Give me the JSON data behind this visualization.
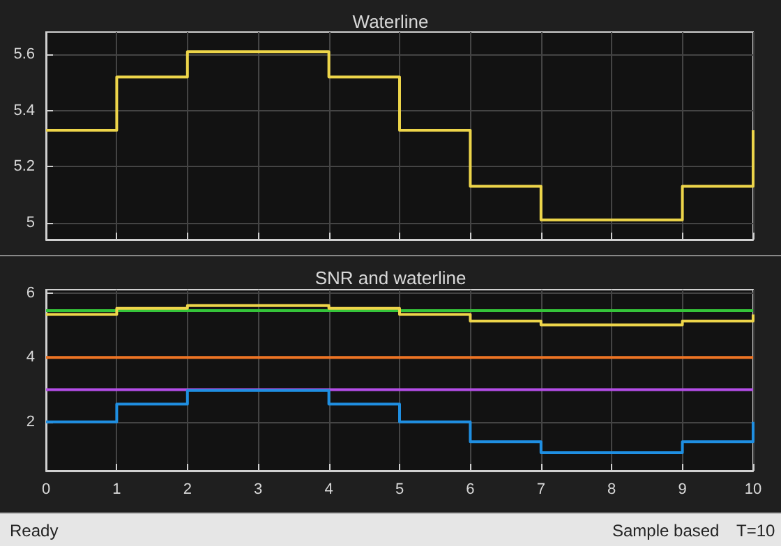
{
  "chart_data": [
    {
      "type": "step",
      "title": "Waterline",
      "x": [
        0,
        1,
        2,
        3,
        4,
        5,
        6,
        7,
        8,
        9,
        10
      ],
      "xlim": [
        0,
        10
      ],
      "xticks": [
        0,
        1,
        2,
        3,
        4,
        5,
        6,
        7,
        8,
        9,
        10
      ],
      "ylim": [
        4.94,
        5.68
      ],
      "yticks": [
        5,
        5.2,
        5.4,
        5.6
      ],
      "grid": true,
      "tick_labels": "y",
      "series": [
        {
          "color": "#edd54a",
          "values": [
            5.33,
            5.52,
            5.61,
            5.61,
            5.52,
            5.33,
            5.13,
            5.01,
            5.01,
            5.13,
            5.33
          ]
        }
      ]
    },
    {
      "type": "step",
      "title": "SNR and waterline",
      "x": [
        0,
        1,
        2,
        3,
        4,
        5,
        6,
        7,
        8,
        9,
        10
      ],
      "xlim": [
        0,
        10
      ],
      "xticks": [
        0,
        1,
        2,
        3,
        4,
        5,
        6,
        7,
        8,
        9,
        10
      ],
      "ylim": [
        0.48,
        6.1
      ],
      "yticks": [
        2,
        4,
        6
      ],
      "grid": true,
      "series": [
        {
          "color": "#35c43a",
          "values": [
            5.45,
            5.45,
            5.45,
            5.45,
            5.45,
            5.45,
            5.45,
            5.45,
            5.45,
            5.45,
            5.45
          ]
        },
        {
          "color": "#edd54a",
          "values": [
            5.33,
            5.52,
            5.61,
            5.61,
            5.52,
            5.33,
            5.13,
            5.01,
            5.01,
            5.13,
            5.33
          ]
        },
        {
          "color": "#ee7424",
          "values": [
            4,
            4,
            4,
            4,
            4,
            4,
            4,
            4,
            4,
            4,
            4
          ]
        },
        {
          "color": "#b54ee8",
          "values": [
            3,
            3,
            3,
            3,
            3,
            3,
            3,
            3,
            3,
            3,
            3
          ]
        },
        {
          "color": "#1f8fe2",
          "values": [
            2,
            2.55,
            2.97,
            2.97,
            2.55,
            2,
            1.38,
            1.04,
            1.04,
            1.38,
            2
          ]
        }
      ],
      "annotations": [
        "Ready",
        "Sample based",
        "T=10"
      ]
    }
  ]
}
